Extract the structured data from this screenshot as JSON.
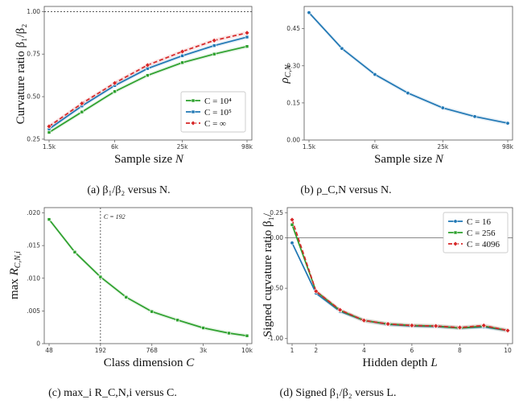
{
  "chart_data": [
    {
      "id": "a",
      "type": "line",
      "xscale": "log",
      "x": [
        1500,
        3000,
        6000,
        12000,
        25000,
        49000,
        98000
      ],
      "xticks": [
        {
          "v": 1500,
          "label": "1.5k"
        },
        {
          "v": 6000,
          "label": "6k"
        },
        {
          "v": 25000,
          "label": "25k"
        },
        {
          "v": 98000,
          "label": "98k"
        }
      ],
      "yticks": [
        {
          "v": 0.25,
          "label": "0.25"
        },
        {
          "v": 0.5,
          "label": "0.50"
        },
        {
          "v": 0.75,
          "label": "0.75"
        },
        {
          "v": 1.0,
          "label": "1.00"
        }
      ],
      "ylim": [
        0.245,
        1.03
      ],
      "hline": 1.0,
      "xlabel": "Sample size N",
      "ylabel": "Curvature ratio β₁/β₂",
      "caption": "(a) β₁/β₂ versus N.",
      "legend": "lower-right",
      "series": [
        {
          "name": "C = 10⁴",
          "color": "#2ca02c",
          "dash": "",
          "marker": "square",
          "values": [
            0.29,
            0.41,
            0.53,
            0.625,
            0.7,
            0.75,
            0.795
          ]
        },
        {
          "name": "C = 10⁵",
          "color": "#1f77b4",
          "dash": "",
          "marker": "square",
          "values": [
            0.31,
            0.445,
            0.565,
            0.665,
            0.74,
            0.8,
            0.85
          ]
        },
        {
          "name": "C = ∞",
          "color": "#d62728",
          "dash": "5,3",
          "marker": "diamond",
          "values": [
            0.325,
            0.46,
            0.58,
            0.685,
            0.765,
            0.83,
            0.875
          ]
        }
      ]
    },
    {
      "id": "b",
      "type": "line",
      "xscale": "log",
      "x": [
        1500,
        3000,
        6000,
        12000,
        25000,
        49000,
        98000
      ],
      "xticks": [
        {
          "v": 1500,
          "label": "1.5k"
        },
        {
          "v": 6000,
          "label": "6k"
        },
        {
          "v": 25000,
          "label": "25k"
        },
        {
          "v": 98000,
          "label": "98k"
        }
      ],
      "yticks": [
        {
          "v": 0,
          "label": "0.00"
        },
        {
          "v": 0.15,
          "label": "0.15"
        },
        {
          "v": 0.3,
          "label": "0.30"
        },
        {
          "v": 0.45,
          "label": "0.45"
        }
      ],
      "ylim": [
        0,
        0.54
      ],
      "xlabel": "Sample size N",
      "ylabel": "ρ_C,N",
      "caption": "(b) ρ_C,N versus N.",
      "series": [
        {
          "name": "",
          "color": "#1f77b4",
          "dash": "",
          "marker": "circle",
          "values": [
            0.515,
            0.37,
            0.265,
            0.19,
            0.13,
            0.095,
            0.068
          ]
        }
      ]
    },
    {
      "id": "c",
      "type": "line",
      "xscale": "log",
      "x": [
        48,
        96,
        192,
        384,
        768,
        1536,
        3072,
        6144,
        10000
      ],
      "xticks": [
        {
          "v": 48,
          "label": "48"
        },
        {
          "v": 192,
          "label": "192"
        },
        {
          "v": 768,
          "label": "768"
        },
        {
          "v": 3072,
          "label": "3k"
        },
        {
          "v": 10000,
          "label": "10k"
        }
      ],
      "yticks": [
        {
          "v": 0,
          "label": "0"
        },
        {
          "v": 0.005,
          "label": ".005"
        },
        {
          "v": 0.01,
          "label": ".010"
        },
        {
          "v": 0.015,
          "label": ".015"
        },
        {
          "v": 0.02,
          "label": ".020"
        }
      ],
      "ylim": [
        0,
        0.0208
      ],
      "vline": {
        "x": 192,
        "label": "C = 192"
      },
      "xlabel": "Class dimension C",
      "ylabel": "max_i R_C,N,i",
      "caption": "(c) max_i R_C,N,i versus C.",
      "series": [
        {
          "name": "",
          "color": "#2ca02c",
          "dash": "",
          "marker": "square",
          "values": [
            0.019,
            0.014,
            0.0102,
            0.0071,
            0.0049,
            0.0036,
            0.0024,
            0.0016,
            0.0012
          ]
        }
      ]
    },
    {
      "id": "d",
      "type": "line",
      "xscale": "linear",
      "x": [
        1,
        2,
        3,
        4,
        5,
        6,
        7,
        8,
        9,
        10
      ],
      "xticks": [
        {
          "v": 1,
          "label": "1"
        },
        {
          "v": 2,
          "label": "2"
        },
        {
          "v": 4,
          "label": "4"
        },
        {
          "v": 6,
          "label": "6"
        },
        {
          "v": 8,
          "label": "8"
        },
        {
          "v": 10,
          "label": "10"
        }
      ],
      "yticks": [
        {
          "v": -1.0,
          "label": "-1.00"
        },
        {
          "v": -0.5,
          "label": "-0.50"
        },
        {
          "v": 0.0,
          "label": "0.00"
        },
        {
          "v": 0.25,
          "label": "0.25"
        }
      ],
      "ylim": [
        -1.05,
        0.3
      ],
      "hline": 0.0,
      "xlabel": "Hidden depth L",
      "ylabel": "Signed curvature ratio β₁/",
      "caption": "(d) Signed β₁/β₂ versus L.",
      "legend": "top-right",
      "series": [
        {
          "name": "C = 16",
          "color": "#1f77b4",
          "dash": "",
          "marker": "circle",
          "values": [
            -0.05,
            -0.55,
            -0.73,
            -0.82,
            -0.86,
            -0.875,
            -0.88,
            -0.895,
            -0.885,
            -0.92
          ]
        },
        {
          "name": "C = 256",
          "color": "#2ca02c",
          "dash": "",
          "marker": "square",
          "values": [
            0.13,
            -0.53,
            -0.72,
            -0.82,
            -0.855,
            -0.87,
            -0.875,
            -0.895,
            -0.875,
            -0.92
          ]
        },
        {
          "name": "C = 4096",
          "color": "#d62728",
          "dash": "5,3",
          "marker": "diamond",
          "values": [
            0.18,
            -0.53,
            -0.715,
            -0.82,
            -0.855,
            -0.87,
            -0.875,
            -0.89,
            -0.87,
            -0.92
          ]
        }
      ]
    }
  ]
}
